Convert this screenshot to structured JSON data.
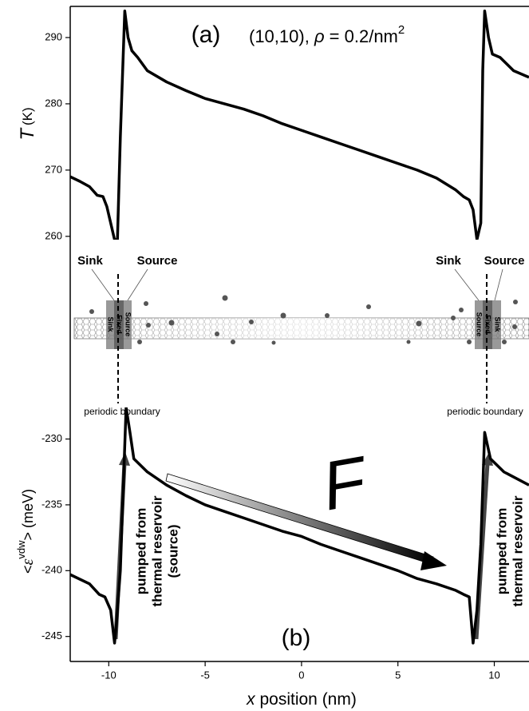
{
  "chart_data": [
    {
      "type": "line",
      "annotations": {
        "panel": "(a)",
        "title": [
          "(10,10), ",
          "ρ",
          " = 0.2/nm",
          "2"
        ]
      },
      "ylabel": [
        "T",
        "(K)"
      ],
      "x": [
        -12,
        -11.5,
        -11,
        -10.6,
        -10.3,
        -10.1,
        -9.9,
        -9.7,
        -9.55,
        -9.4,
        -9.17,
        -9.0,
        -8.8,
        -8.5,
        -8,
        -7,
        -6,
        -5,
        -4,
        -3,
        -2,
        -1,
        0,
        1,
        2,
        3,
        4,
        5,
        6,
        7,
        8,
        8.4,
        8.7,
        8.9,
        9.1,
        9.3,
        9.4,
        9.5,
        9.7,
        9.9,
        10.3,
        11,
        11.8
      ],
      "values": [
        269,
        268.3,
        267.5,
        266.2,
        266,
        264.5,
        262,
        259.5,
        259.5,
        275,
        294,
        290,
        288,
        287,
        285,
        283.3,
        282,
        280.8,
        280,
        279.2,
        278.2,
        277,
        276,
        275,
        274,
        273,
        272,
        271,
        270,
        268.8,
        267,
        266,
        265.5,
        264,
        259.5,
        262,
        285,
        294,
        290,
        287.5,
        287,
        285,
        284
      ],
      "color": "#000000",
      "xlim": [
        -12,
        11.8
      ],
      "ylim": [
        259.5,
        294.7
      ],
      "yticks": [
        260,
        270,
        280,
        290
      ]
    },
    {
      "type": "line",
      "annotations": {
        "panel": "(b)",
        "force": "F",
        "left_note": [
          "pumped from",
          "thermal reservoir",
          "(source)"
        ],
        "right_note": [
          "pumped from",
          "thermal reservoir"
        ]
      },
      "ylabel": [
        "<",
        "ε",
        "vdw",
        "> (meV)"
      ],
      "xlabel": [
        "x",
        " position (nm)"
      ],
      "x": [
        -12,
        -11,
        -10.5,
        -10.2,
        -9.9,
        -9.7,
        -9.6,
        -9.4,
        -9.1,
        -8.9,
        -8.7,
        -8,
        -7,
        -6,
        -5,
        -4,
        -3,
        -2,
        -1,
        0,
        1,
        2,
        3,
        4,
        5,
        6,
        7,
        8,
        8.4,
        8.7,
        8.9,
        9.1,
        9.3,
        9.5,
        9.8,
        10.5,
        11.8
      ],
      "values": [
        -240.3,
        -241,
        -241.8,
        -242,
        -243,
        -245.5,
        -244,
        -240,
        -227.6,
        -229.5,
        -231.5,
        -232.5,
        -233.5,
        -234.3,
        -235,
        -235.5,
        -236,
        -236.5,
        -237,
        -237.4,
        -238,
        -238.5,
        -239,
        -239.5,
        -240,
        -240.6,
        -241,
        -241.5,
        -241.8,
        -242,
        -245.5,
        -243,
        -238,
        -229.5,
        -231.5,
        -232.5,
        -233.5
      ],
      "color": "#000000",
      "xlim": [
        -12,
        11.8
      ],
      "ylim": [
        -246.9,
        -227.6
      ],
      "xticks": [
        -10,
        -5,
        0,
        5,
        10
      ],
      "yticks": [
        -245,
        -240,
        -235,
        -230
      ]
    }
  ],
  "diagram": {
    "labels": [
      "Sink",
      "Source",
      "Sink",
      "Source"
    ],
    "box_labels": [
      [
        "Sink",
        "Fixed",
        "Source"
      ],
      [
        "Sink",
        "Fixed",
        "Source"
      ]
    ],
    "boundary": [
      "periodic boundary",
      "periodic boundary"
    ]
  }
}
